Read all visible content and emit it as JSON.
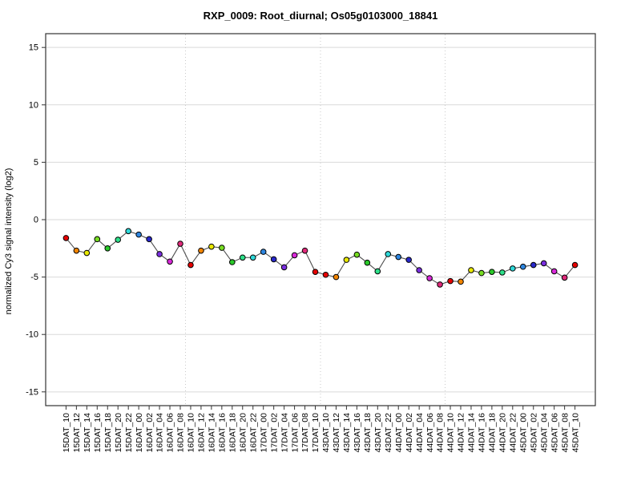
{
  "chart_data": {
    "type": "line",
    "title": "RXP_0009: Root_diurnal; Os05g0103000_18841",
    "xlabel": "",
    "ylabel": "normalized Cy3 signal intensity (log2)",
    "ylim": [
      -15,
      15
    ],
    "yticks": [
      15,
      10,
      5,
      0,
      -5,
      -10,
      -15
    ],
    "ytick_labels": [
      "15",
      "10",
      "5",
      "0",
      "-5",
      "-10",
      "-15"
    ],
    "grid": {
      "horizontal_at_yticks": true,
      "vertical_dotted_separators_after_index": [
        11,
        24,
        36
      ]
    },
    "legend": null,
    "categories": [
      "15DAT_10",
      "15DAT_12",
      "15DAT_14",
      "15DAT_16",
      "15DAT_18",
      "15DAT_20",
      "15DAT_22",
      "16DAT_00",
      "16DAT_02",
      "16DAT_04",
      "16DAT_06",
      "16DAT_08",
      "16DAT_10",
      "16DAT_12",
      "16DAT_14",
      "16DAT_16",
      "16DAT_18",
      "16DAT_20",
      "16DAT_22",
      "17DAT_00",
      "17DAT_02",
      "17DAT_04",
      "17DAT_06",
      "17DAT_08",
      "17DAT_10",
      "43DAT_10",
      "43DAT_12",
      "43DAT_14",
      "43DAT_16",
      "43DAT_18",
      "43DAT_20",
      "43DAT_22",
      "44DAT_00",
      "44DAT_02",
      "44DAT_04",
      "44DAT_06",
      "44DAT_08",
      "44DAT_10",
      "44DAT_12",
      "44DAT_14",
      "44DAT_16",
      "44DAT_18",
      "44DAT_20",
      "44DAT_22",
      "45DAT_00",
      "45DAT_02",
      "45DAT_04",
      "45DAT_06",
      "45DAT_08",
      "45DAT_10"
    ],
    "values": [
      -1.6,
      -2.7,
      -2.9,
      -1.7,
      -2.5,
      -1.75,
      -1.0,
      -1.3,
      -1.7,
      -3.0,
      -3.65,
      -2.1,
      -3.95,
      -2.7,
      -2.35,
      -2.45,
      -3.7,
      -3.3,
      -3.3,
      -2.8,
      -3.45,
      -4.15,
      -3.1,
      -2.7,
      -4.55,
      -4.8,
      -5.0,
      -3.5,
      -3.05,
      -3.75,
      -4.5,
      -3.0,
      -3.25,
      -3.5,
      -4.4,
      -5.1,
      -5.65,
      -5.35,
      -5.4,
      -4.4,
      -4.65,
      -4.55,
      -4.6,
      -4.25,
      -4.1,
      -3.95,
      -3.8,
      -4.5,
      -5.05,
      -3.95
    ],
    "marker_palette_by_hour": {
      "00": "#2E86E0",
      "02": "#2929CC",
      "04": "#7A2EE0",
      "06": "#D929D9",
      "08": "#E0297A",
      "10": "#E60000",
      "12": "#F28500",
      "14": "#E8E800",
      "16": "#77DD22",
      "18": "#29C929",
      "20": "#2EE08A",
      "22": "#2ED9D9"
    }
  },
  "colors": {
    "background": "#ffffff",
    "axis_box": "#333333",
    "tick": "#333333",
    "grid_horizontal": "#d9d9d9",
    "grid_vertical_dotted": "#c9c9c9",
    "series_line": "#4d4d4d",
    "marker_stroke": "#000000",
    "text": "#000000"
  }
}
